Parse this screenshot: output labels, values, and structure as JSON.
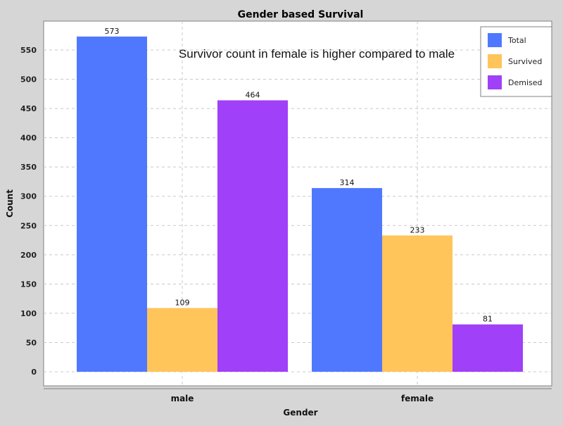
{
  "chart_data": {
    "type": "bar",
    "title": "Gender based Survival",
    "xlabel": "Gender",
    "ylabel": "Count",
    "categories": [
      "male",
      "female"
    ],
    "series": [
      {
        "name": "Total",
        "values": [
          573,
          314
        ],
        "color": "#5078ff"
      },
      {
        "name": "Survived",
        "values": [
          109,
          233
        ],
        "color": "#ffc45a"
      },
      {
        "name": "Demised",
        "values": [
          464,
          81
        ],
        "color": "#a040f8"
      }
    ],
    "ylim": [
      0,
      580
    ],
    "yticks": [
      0,
      50,
      100,
      150,
      200,
      250,
      300,
      350,
      400,
      450,
      500,
      550
    ],
    "grid": true,
    "legend_position": "top-right",
    "annotation": "Survivor count in female is higher compared to male"
  }
}
